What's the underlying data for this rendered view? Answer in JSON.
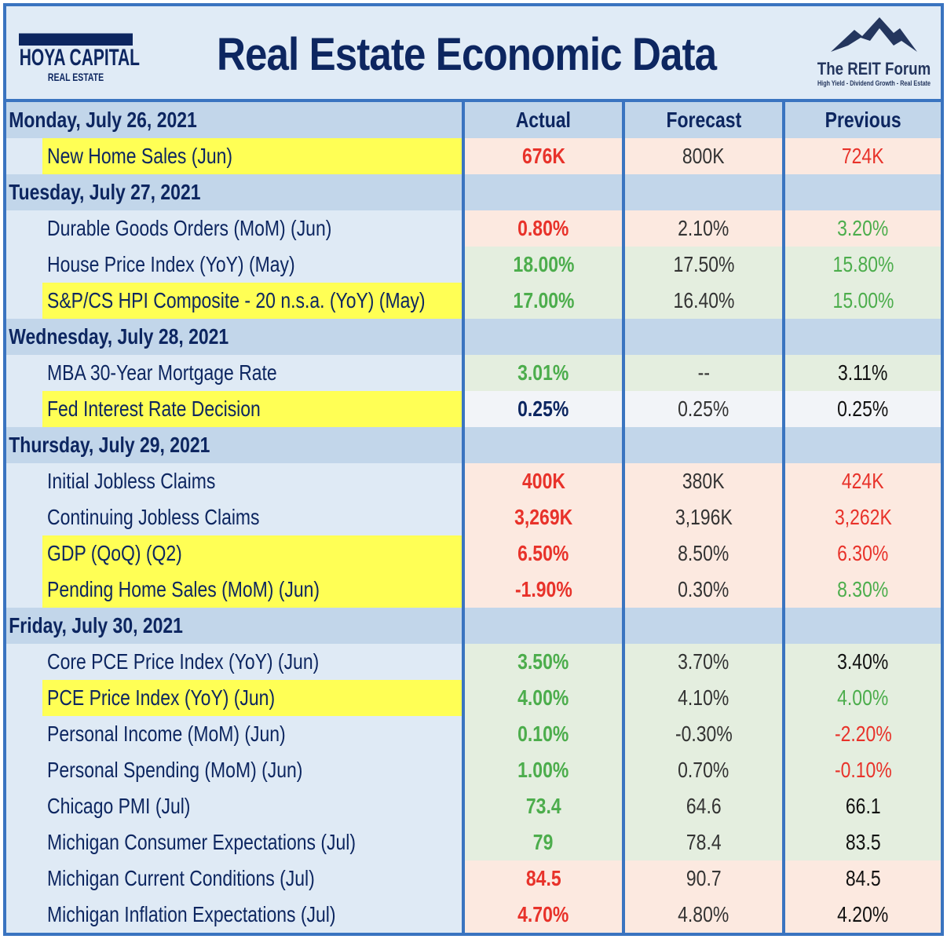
{
  "header": {
    "title": "Real Estate Economic Data",
    "left_logo": {
      "name": "HOYA CAPITAL",
      "sub": "REAL ESTATE"
    },
    "right_logo": {
      "name": "The REIT Forum",
      "sub": "High Yield - Dividend Growth - Real Estate"
    }
  },
  "columns": [
    "Actual",
    "Forecast",
    "Previous"
  ],
  "days": [
    {
      "date": "Monday, July 26, 2021",
      "rows": [
        {
          "label": "New Home Sales (Jun)",
          "hl": true,
          "bg": "red",
          "actual": "676K",
          "ac": "r",
          "forecast": "800K",
          "previous": "724K",
          "pc": "r"
        }
      ]
    },
    {
      "date": "Tuesday, July 27, 2021",
      "rows": [
        {
          "label": "Durable Goods Orders (MoM) (Jun)",
          "hl": false,
          "bg": "red",
          "actual": "0.80%",
          "ac": "r",
          "forecast": "2.10%",
          "previous": "3.20%",
          "pc": "g"
        },
        {
          "label": "House Price Index (YoY) (May)",
          "hl": false,
          "bg": "green",
          "actual": "18.00%",
          "ac": "g",
          "forecast": "17.50%",
          "previous": "15.80%",
          "pc": "g"
        },
        {
          "label": "S&P/CS HPI Composite - 20 n.s.a. (YoY) (May)",
          "hl": true,
          "bg": "green",
          "actual": "17.00%",
          "ac": "g",
          "forecast": "16.40%",
          "previous": "15.00%",
          "pc": "g"
        }
      ]
    },
    {
      "date": "Wednesday, July 28, 2021",
      "rows": [
        {
          "label": "MBA 30-Year Mortgage Rate",
          "hl": false,
          "bg": "green",
          "actual": "3.01%",
          "ac": "g",
          "forecast": "--",
          "previous": "3.11%",
          "pc": "k"
        },
        {
          "label": "Fed Interest Rate Decision",
          "hl": true,
          "bg": "neutral",
          "actual": "0.25%",
          "ac": "n",
          "forecast": "0.25%",
          "previous": "0.25%",
          "pc": "k"
        }
      ]
    },
    {
      "date": "Thursday, July 29, 2021",
      "rows": [
        {
          "label": "Initial Jobless Claims",
          "hl": false,
          "bg": "red",
          "actual": "400K",
          "ac": "r",
          "forecast": "380K",
          "previous": "424K",
          "pc": "r"
        },
        {
          "label": "Continuing Jobless Claims",
          "hl": false,
          "bg": "red",
          "actual": "3,269K",
          "ac": "r",
          "forecast": "3,196K",
          "previous": "3,262K",
          "pc": "r"
        },
        {
          "label": "GDP (QoQ) (Q2)",
          "hl": true,
          "bg": "red",
          "actual": "6.50%",
          "ac": "r",
          "forecast": "8.50%",
          "previous": "6.30%",
          "pc": "r"
        },
        {
          "label": "Pending Home Sales (MoM) (Jun)",
          "hl": true,
          "bg": "red",
          "actual": "-1.90%",
          "ac": "r",
          "forecast": "0.30%",
          "previous": "8.30%",
          "pc": "g"
        }
      ]
    },
    {
      "date": "Friday, July 30, 2021",
      "rows": [
        {
          "label": "Core PCE Price Index (YoY) (Jun)",
          "hl": false,
          "bg": "green",
          "actual": "3.50%",
          "ac": "g",
          "forecast": "3.70%",
          "previous": "3.40%",
          "pc": "k"
        },
        {
          "label": "PCE Price Index (YoY) (Jun)",
          "hl": true,
          "bg": "green",
          "actual": "4.00%",
          "ac": "g",
          "forecast": "4.10%",
          "previous": "4.00%",
          "pc": "g"
        },
        {
          "label": "Personal Income (MoM) (Jun)",
          "hl": false,
          "bg": "green",
          "actual": "0.10%",
          "ac": "g",
          "forecast": "-0.30%",
          "previous": "-2.20%",
          "pc": "r"
        },
        {
          "label": "Personal Spending (MoM) (Jun)",
          "hl": false,
          "bg": "green",
          "actual": "1.00%",
          "ac": "g",
          "forecast": "0.70%",
          "previous": "-0.10%",
          "pc": "r"
        },
        {
          "label": "Chicago PMI (Jul)",
          "hl": false,
          "bg": "green",
          "actual": "73.4",
          "ac": "g",
          "forecast": "64.6",
          "previous": "66.1",
          "pc": "k"
        },
        {
          "label": "Michigan Consumer Expectations (Jul)",
          "hl": false,
          "bg": "green",
          "actual": "79",
          "ac": "g",
          "forecast": "78.4",
          "previous": "83.5",
          "pc": "k"
        },
        {
          "label": "Michigan Current Conditions (Jul)",
          "hl": false,
          "bg": "red",
          "actual": "84.5",
          "ac": "r",
          "forecast": "90.7",
          "previous": "84.5",
          "pc": "k"
        },
        {
          "label": "Michigan Inflation Expectations (Jul)",
          "hl": false,
          "bg": "red",
          "actual": "4.70%",
          "ac": "r",
          "forecast": "4.80%",
          "previous": "4.20%",
          "pc": "k"
        }
      ]
    }
  ]
}
